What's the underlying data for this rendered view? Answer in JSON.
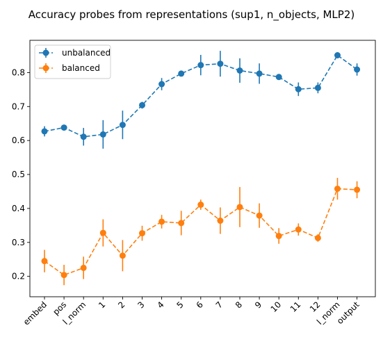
{
  "chart_data": {
    "type": "line",
    "title": "Accuracy probes from representations (sup1, n_objects, MLP2)",
    "xlabel": "",
    "ylabel": "",
    "categories": [
      "embed",
      "pos",
      "l_norm",
      "1",
      "2",
      "3",
      "4",
      "5",
      "6",
      "7",
      "8",
      "9",
      "10",
      "11",
      "12",
      "l_norm",
      "output"
    ],
    "ylim": [
      0.14,
      0.895
    ],
    "yticks": [
      0.2,
      0.3,
      0.4,
      0.5,
      0.6,
      0.7,
      0.8
    ],
    "grid": false,
    "legend_position": "top-left",
    "series": [
      {
        "name": "unbalanced",
        "color": "#1f77b4",
        "values": [
          0.627,
          0.638,
          0.611,
          0.618,
          0.646,
          0.704,
          0.766,
          0.797,
          0.822,
          0.826,
          0.806,
          0.797,
          0.787,
          0.751,
          0.755,
          0.851,
          0.809
        ],
        "errors": [
          0.015,
          0.006,
          0.026,
          0.042,
          0.042,
          0.01,
          0.018,
          0.006,
          0.03,
          0.038,
          0.036,
          0.03,
          0.008,
          0.02,
          0.016,
          0.009,
          0.018
        ]
      },
      {
        "name": "balanced",
        "color": "#ff7f0e",
        "values": [
          0.245,
          0.204,
          0.225,
          0.328,
          0.261,
          0.327,
          0.361,
          0.357,
          0.411,
          0.364,
          0.404,
          0.379,
          0.319,
          0.338,
          0.313,
          0.458,
          0.455
        ],
        "errors": [
          0.033,
          0.03,
          0.033,
          0.04,
          0.046,
          0.022,
          0.02,
          0.036,
          0.015,
          0.039,
          0.059,
          0.036,
          0.023,
          0.018,
          0.011,
          0.032,
          0.025
        ]
      }
    ]
  }
}
